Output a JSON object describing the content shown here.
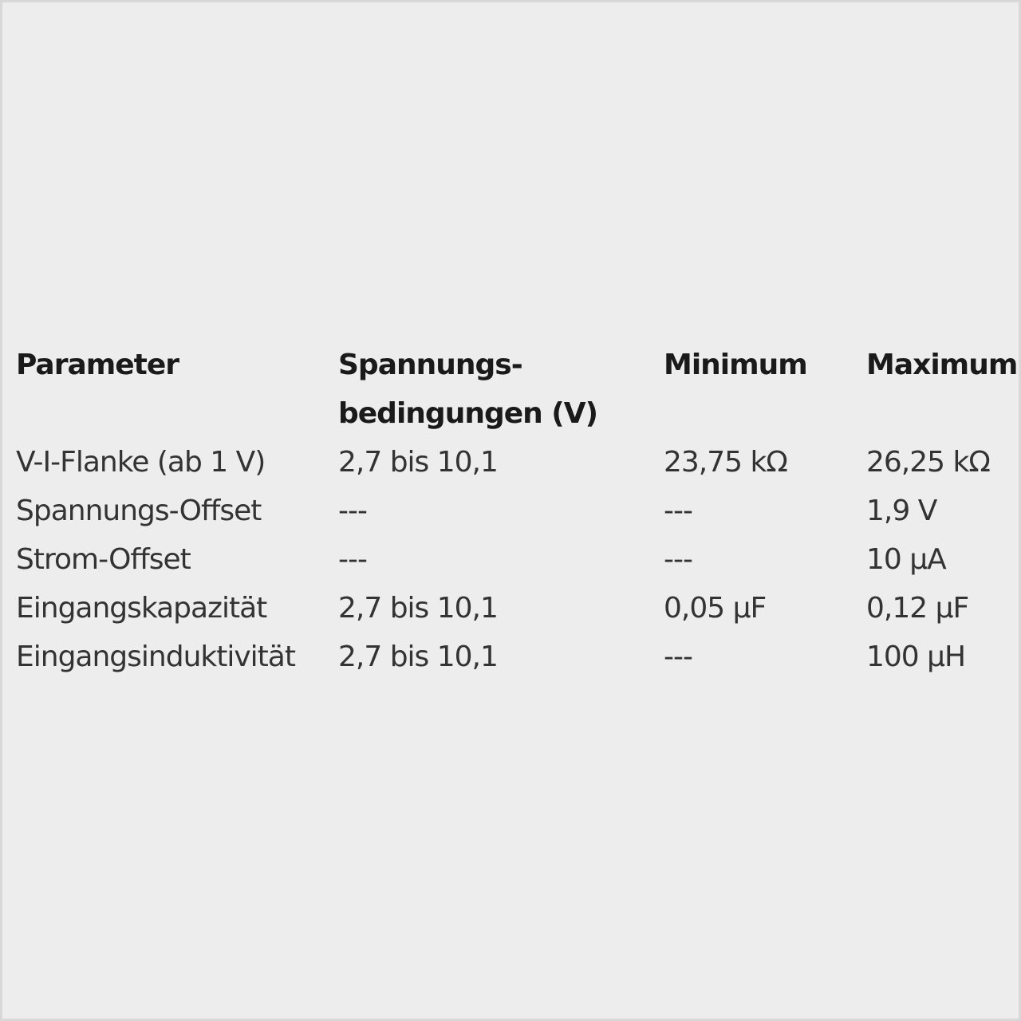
{
  "table": {
    "header": [
      "Parameter",
      "Spannungs-\nbedingungen (V)",
      "Minimum",
      "Maximum"
    ],
    "rows": [
      [
        "V-I-Flanke (ab 1 V)",
        "2,7 bis 10,1",
        "23,75 kΩ",
        "26,25 kΩ"
      ],
      [
        "Spannungs-Offset",
        "---",
        "---",
        "1,9 V"
      ],
      [
        "Strom-Offset",
        "---",
        "---",
        "10 µA"
      ],
      [
        "Eingangskapazität",
        "2,7 bis 10,1",
        "0,05 µF",
        "0,12 µF"
      ],
      [
        "Eingangsinduktivität",
        "2,7 bis 10,1",
        "---",
        "100 µH"
      ]
    ]
  }
}
